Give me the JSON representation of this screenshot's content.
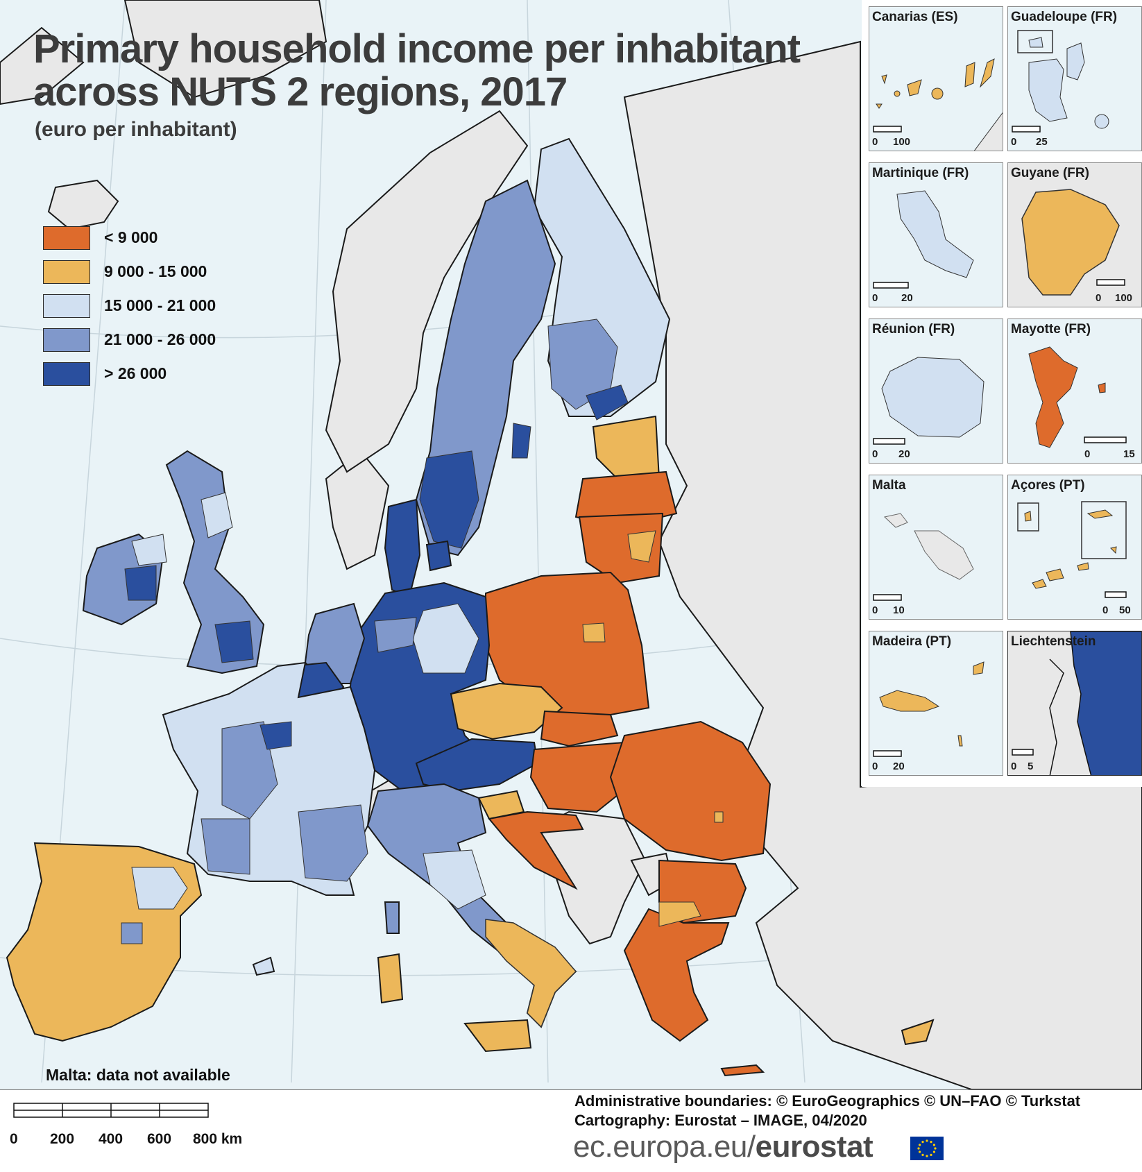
{
  "title": "Primary household income per inhabitant across NUTS 2 regions, 2017",
  "subtitle": "(euro per inhabitant)",
  "legend": [
    {
      "label": "< 9 000",
      "color": "#de6b2c"
    },
    {
      "label": "9 000 - 15 000",
      "color": "#ecb75a"
    },
    {
      "label": "15 000 - 21 000",
      "color": "#d1e0f1"
    },
    {
      "label": "21 000 - 26 000",
      "color": "#8098cb"
    },
    {
      "label": "> 26 000",
      "color": "#2a4f9e"
    }
  ],
  "colors": {
    "sea": "#e9f3f7",
    "non_eu_land": "#e8e8e8",
    "no_data": "#e8e8e8"
  },
  "insets": [
    {
      "label": "Canarias (ES)",
      "scale": [
        "0",
        "100"
      ],
      "class_color": "#ecb75a"
    },
    {
      "label": "Guadeloupe (FR)",
      "scale": [
        "0",
        "25"
      ],
      "class_color": "#d1e0f1"
    },
    {
      "label": "Martinique (FR)",
      "scale": [
        "0",
        "20"
      ],
      "class_color": "#d1e0f1"
    },
    {
      "label": "Guyane (FR)",
      "scale": [
        "0",
        "100"
      ],
      "class_color": "#ecb75a"
    },
    {
      "label": "Réunion (FR)",
      "scale": [
        "0",
        "20"
      ],
      "class_color": "#d1e0f1"
    },
    {
      "label": "Mayotte (FR)",
      "scale": [
        "0",
        "15"
      ],
      "class_color": "#de6b2c"
    },
    {
      "label": "Malta",
      "scale": [
        "0",
        "10"
      ],
      "class_color": "#e8e8e8"
    },
    {
      "label": "Açores (PT)",
      "scale": [
        "0",
        "50"
      ],
      "class_color": "#ecb75a"
    },
    {
      "label": "Madeira (PT)",
      "scale": [
        "0",
        "20"
      ],
      "class_color": "#ecb75a"
    },
    {
      "label": "Liechtenstein",
      "scale": [
        "0",
        "5"
      ],
      "class_color": "#2a4f9e"
    }
  ],
  "note": "Malta: data not available",
  "scalebar": {
    "ticks": [
      "0",
      "200",
      "400",
      "600",
      "800 km"
    ]
  },
  "credits": {
    "line1": "Administrative boundaries: © EuroGeographics © UN–FAO © Turkstat",
    "line2": "Cartography: Eurostat – IMAGE, 04/2020"
  },
  "site": {
    "prefix": "ec.europa.eu/",
    "brand": "eurostat"
  }
}
